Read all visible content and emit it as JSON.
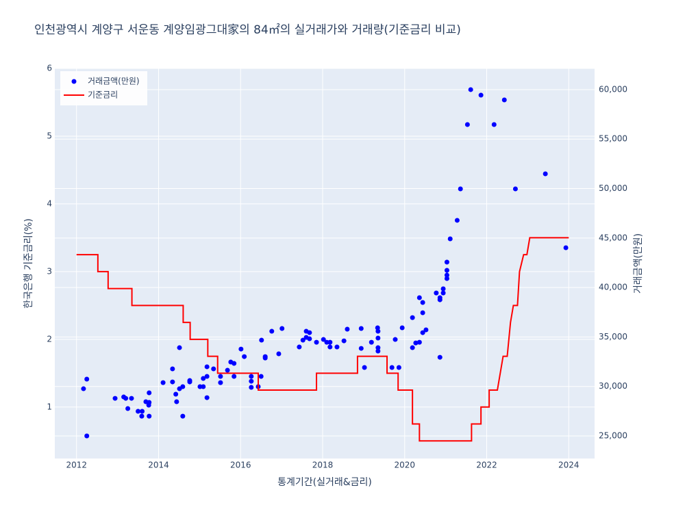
{
  "chart_data": {
    "type": "line",
    "title": "인천광역시 계양구 서운동 계양임광그대家의 84㎡의 실거래가와 거래량(기준금리 비교)",
    "x_label": "통계기간(실거래&금리)",
    "y_label": "한국은행 기준금리(%)",
    "y2_label": "거래금액(만원)",
    "xlim": [
      2011.47,
      2024.63
    ],
    "xticks": [
      2012,
      2014,
      2016,
      2018,
      2020,
      2022,
      2024
    ],
    "ylim": [
      0.24,
      6
    ],
    "yticks": [
      1,
      2,
      3,
      4,
      5,
      6
    ],
    "y2lim": [
      22720,
      62140
    ],
    "y2ticks": [
      {
        "value": 25000,
        "label": "25,000"
      },
      {
        "value": 30000,
        "label": "30,000"
      },
      {
        "value": 35000,
        "label": "35,000"
      },
      {
        "value": 40000,
        "label": "40,000"
      },
      {
        "value": 45000,
        "label": "45,000"
      },
      {
        "value": 50000,
        "label": "50,000"
      },
      {
        "value": 55000,
        "label": "55,000"
      },
      {
        "value": 60000,
        "label": "60,000"
      }
    ],
    "grid": true,
    "legend": "top-left",
    "series": [
      {
        "name": "거래금액(만원)",
        "type": "scatter",
        "axis": "y2",
        "color": "#0000ff",
        "x": [
          2012.17,
          2012.25,
          2012.25,
          2012.94,
          2013.15,
          2013.2,
          2013.25,
          2013.34,
          2013.5,
          2013.59,
          2013.6,
          2013.69,
          2013.76,
          2013.77,
          2013.77,
          2013.77,
          2014.11,
          2014.34,
          2014.34,
          2014.42,
          2014.44,
          2014.51,
          2014.51,
          2014.59,
          2014.59,
          2014.76,
          2014.76,
          2015.01,
          2015.09,
          2015.09,
          2015.18,
          2015.18,
          2015.18,
          2015.34,
          2015.51,
          2015.51,
          2015.68,
          2015.76,
          2015.84,
          2015.84,
          2016.01,
          2016.09,
          2016.26,
          2016.26,
          2016.26,
          2016.43,
          2016.5,
          2016.51,
          2016.6,
          2016.6,
          2016.76,
          2016.93,
          2017.01,
          2017.43,
          2017.52,
          2017.6,
          2017.6,
          2017.68,
          2017.68,
          2017.85,
          2018.02,
          2018.1,
          2018.18,
          2018.18,
          2018.35,
          2018.52,
          2018.6,
          2018.94,
          2018.94,
          2019.02,
          2019.19,
          2019.35,
          2019.35,
          2019.35,
          2019.34,
          2019.35,
          2019.69,
          2019.77,
          2019.86,
          2019.94,
          2020.19,
          2020.19,
          2020.27,
          2020.36,
          2020.36,
          2020.44,
          2020.44,
          2020.44,
          2020.52,
          2020.77,
          2020.86,
          2020.86,
          2020.86,
          2020.94,
          2020.94,
          2021.03,
          2021.03,
          2021.03,
          2021.03,
          2021.11,
          2021.28,
          2021.36,
          2021.53,
          2021.61,
          2021.86,
          2022.18,
          2022.43,
          2022.7,
          2023.43,
          2023.93
        ],
        "values": [
          29770,
          30740,
          25000,
          28800,
          28940,
          28800,
          27770,
          28800,
          27490,
          27000,
          27490,
          28460,
          28110,
          28390,
          29360,
          27000,
          30390,
          31780,
          30460,
          29220,
          28460,
          29770,
          33920,
          29980,
          27000,
          30460,
          30600,
          29980,
          29980,
          30810,
          31020,
          31990,
          28870,
          31780,
          31020,
          30390,
          31640,
          32470,
          32330,
          31020,
          33780,
          33020,
          31020,
          30530,
          29910,
          29980,
          31020,
          34680,
          33020,
          32880,
          35580,
          33300,
          35860,
          33990,
          34680,
          35580,
          34960,
          35440,
          34820,
          34470,
          34750,
          34470,
          34470,
          33990,
          33990,
          34610,
          35790,
          35860,
          33850,
          31920,
          34470,
          33920,
          34890,
          35580,
          35930,
          33580,
          31920,
          34750,
          31920,
          35930,
          36960,
          33920,
          34400,
          38970,
          34470,
          38490,
          37450,
          35440,
          35720,
          39450,
          38970,
          38760,
          32950,
          39450,
          39870,
          40910,
          41740,
          41250,
          42570,
          44920,
          46790,
          49970,
          56470,
          60000,
          59440,
          56470,
          58960,
          49970,
          51490,
          44020
        ]
      },
      {
        "name": "기준금리",
        "type": "line",
        "color": "#ff0000",
        "x": [
          2012.0,
          2012.52,
          2012.52,
          2012.77,
          2012.77,
          2013.35,
          2013.35,
          2014.6,
          2014.6,
          2014.77,
          2014.77,
          2015.2,
          2015.2,
          2015.44,
          2015.44,
          2016.43,
          2016.43,
          2017.85,
          2017.85,
          2018.85,
          2018.85,
          2019.57,
          2019.57,
          2019.84,
          2019.84,
          2020.19,
          2020.19,
          2020.36,
          2020.36,
          2021.63,
          2021.63,
          2021.86,
          2021.86,
          2022.06,
          2022.06,
          2022.26,
          2022.4,
          2022.5,
          2022.58,
          2022.65,
          2022.75,
          2022.8,
          2022.9,
          2022.98,
          2023.05,
          2024.0
        ],
        "values": [
          3.25,
          3.25,
          3.0,
          3.0,
          2.75,
          2.75,
          2.5,
          2.5,
          2.25,
          2.25,
          2.0,
          2.0,
          1.75,
          1.75,
          1.5,
          1.5,
          1.25,
          1.25,
          1.5,
          1.5,
          1.75,
          1.75,
          1.5,
          1.5,
          1.25,
          1.25,
          0.75,
          0.75,
          0.5,
          0.5,
          0.75,
          0.75,
          1.0,
          1.0,
          1.25,
          1.25,
          1.75,
          1.75,
          2.25,
          2.5,
          2.5,
          3.0,
          3.25,
          3.25,
          3.5,
          3.5
        ]
      }
    ]
  }
}
